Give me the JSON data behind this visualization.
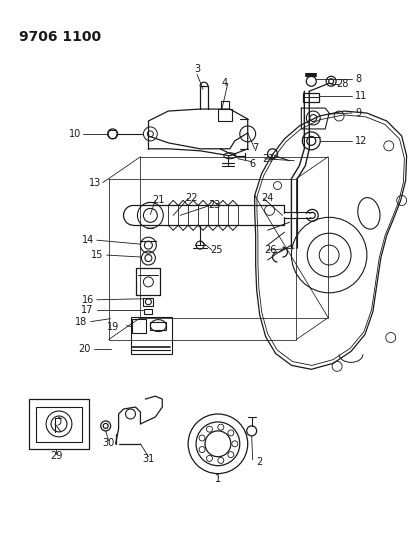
{
  "title": "9706 1100",
  "bg_color": "#ffffff",
  "lc": "#1a1a1a",
  "lw": 0.8,
  "label_fs": 7.0,
  "title_fs": 10,
  "figsize": [
    4.11,
    5.33
  ],
  "dpi": 100
}
